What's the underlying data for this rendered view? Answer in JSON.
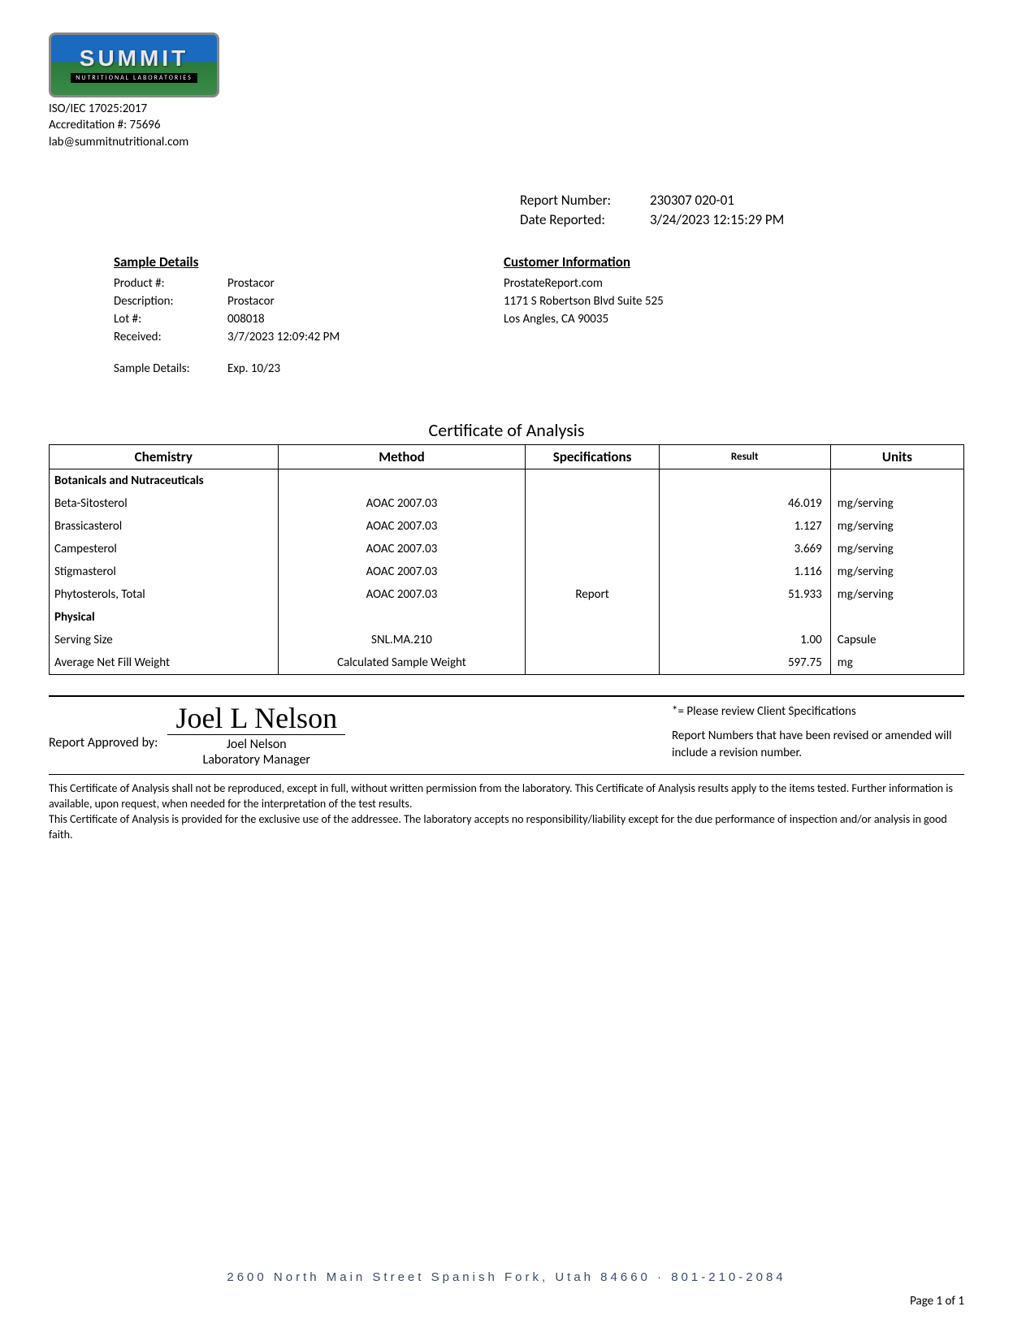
{
  "colors": {
    "text": "#000000",
    "background": "#ffffff",
    "border": "#000000",
    "logo_sky": "#1a6bbf",
    "logo_grass": "#3a8a4a",
    "footer_blue": "#3a4a6a"
  },
  "typography": {
    "body_font": "Calibri, Arial, sans-serif",
    "body_size_pt": 12,
    "title_size_pt": 16,
    "table_header_size_pt": 13
  },
  "logo": {
    "word": "SUMMIT",
    "tagline": "NUTRITIONAL LABORATORIES"
  },
  "accreditation": {
    "line1": "ISO/IEC 17025:2017",
    "line2": "Accreditation #: 75696",
    "line3": "lab@summitnutritional.com"
  },
  "report_meta": {
    "report_number_label": "Report Number:",
    "report_number": "230307 020-01",
    "date_reported_label": "Date Reported:",
    "date_reported": "3/24/2023 12:15:29 PM"
  },
  "sample": {
    "heading": "Sample Details",
    "product_label": "Product #:",
    "product": "Prostacor",
    "description_label": "Description:",
    "description": "Prostacor",
    "lot_label": "Lot #:",
    "lot": "008018",
    "received_label": "Received:",
    "received": "3/7/2023 12:09:42 PM",
    "extra_label": "Sample Details:",
    "extra_value": "Exp. 10/23"
  },
  "customer": {
    "heading": "Customer Information",
    "name": "ProstateReport.com",
    "address1": "1171 S Robertson Blvd Suite 525",
    "address2": "Los Angles, CA 90035"
  },
  "coa_title": "Certificate of Analysis",
  "table": {
    "columns": {
      "chemistry": "Chemistry",
      "method": "Method",
      "specifications": "Specifications",
      "result": "Result",
      "units": "Units"
    },
    "column_widths_pct": [
      24,
      26,
      14,
      18,
      14
    ],
    "sections": [
      {
        "title": "Botanicals and Nutraceuticals",
        "rows": [
          {
            "chem": "Beta-Sitosterol",
            "method": "AOAC 2007.03",
            "spec": "",
            "result": "46.019",
            "units": "mg/serving"
          },
          {
            "chem": "Brassicasterol",
            "method": "AOAC 2007.03",
            "spec": "",
            "result": "1.127",
            "units": "mg/serving"
          },
          {
            "chem": "Campesterol",
            "method": "AOAC 2007.03",
            "spec": "",
            "result": "3.669",
            "units": "mg/serving"
          },
          {
            "chem": "Stigmasterol",
            "method": "AOAC 2007.03",
            "spec": "",
            "result": "1.116",
            "units": "mg/serving"
          },
          {
            "chem": "Phytosterols, Total",
            "method": "AOAC 2007.03",
            "spec": "Report",
            "result": "51.933",
            "units": "mg/serving"
          }
        ]
      },
      {
        "title": "Physical",
        "rows": [
          {
            "chem": "Serving Size",
            "method": "SNL.MA.210",
            "spec": "",
            "result": "1.00",
            "units": "Capsule"
          },
          {
            "chem": "Average Net Fill Weight",
            "method": "Calculated Sample Weight",
            "spec": "",
            "result": "597.75",
            "units": "mg"
          }
        ]
      }
    ]
  },
  "approval": {
    "approved_by_label": "Report Approved by:",
    "signature_script": "Joel L Nelson",
    "name": "Joel Nelson",
    "title": "Laboratory Manager",
    "note_line1": "*= Please review Client Specifications",
    "note_line2": "Report Numbers that have been revised or amended will include a revision number."
  },
  "disclaimer": {
    "p1": "This Certificate of Analysis shall not be reproduced, except in full, without written permission from the laboratory. This Certificate of Analysis results apply to the items tested. Further information is available, upon request, when needed for the interpretation of the test results.",
    "p2": "This Certificate of Analysis is provided for the exclusive use of the addressee. The laboratory accepts no responsibility/liability except for the due performance of inspection and/or analysis in good faith."
  },
  "footer": {
    "address": "2600 North Main Street Spanish Fork, Utah 84660 · 801-210-2084",
    "page": "Page 1 of 1"
  }
}
